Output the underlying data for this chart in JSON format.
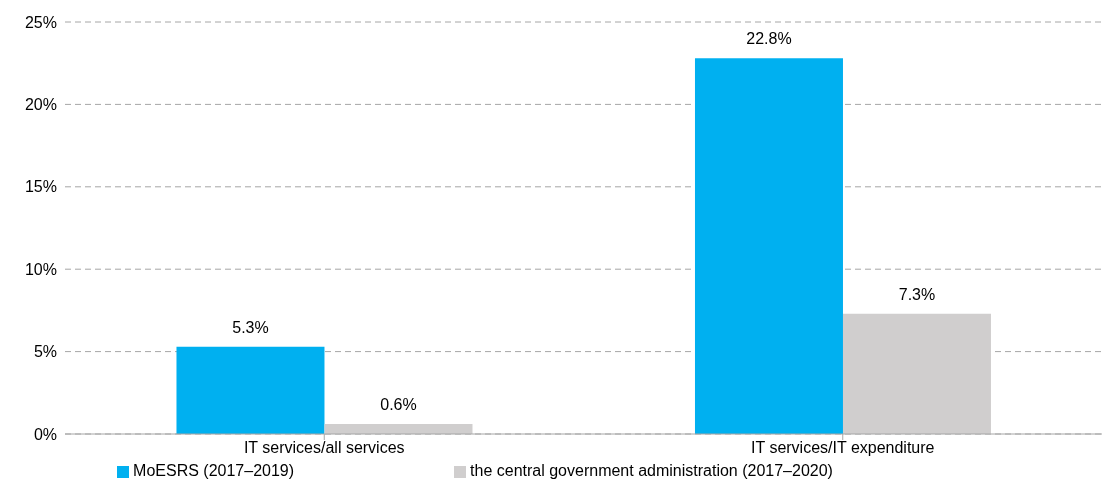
{
  "chart_data": {
    "type": "bar",
    "categories": [
      "IT services/all services",
      "IT services/IT expenditure"
    ],
    "series": [
      {
        "name": "MoESRS (2017–2019)",
        "color": "#00b0f0",
        "values": [
          5.3,
          22.8
        ],
        "value_labels": [
          "5.3%",
          "22.8%"
        ]
      },
      {
        "name": "the central government administration (2017–2020)",
        "color": "#d0cece",
        "values": [
          0.6,
          7.3
        ],
        "value_labels": [
          "0.6%",
          "7.3%"
        ]
      }
    ],
    "ylim": [
      0,
      25
    ],
    "yticks": [
      {
        "value": 0,
        "label": "0%"
      },
      {
        "value": 5,
        "label": "5%"
      },
      {
        "value": 10,
        "label": "10%"
      },
      {
        "value": 15,
        "label": "15%"
      },
      {
        "value": 20,
        "label": "20%"
      },
      {
        "value": 25,
        "label": "25%"
      }
    ],
    "grid": "y",
    "legend": "bottom"
  }
}
